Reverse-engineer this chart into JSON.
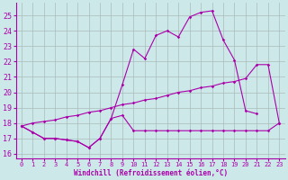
{
  "xlabel": "Windchill (Refroidissement éolien,°C)",
  "background_color": "#cce8e8",
  "grid_color": "#aabbbb",
  "line_color": "#aa00aa",
  "xlim": [
    -0.5,
    23.5
  ],
  "ylim": [
    15.7,
    25.8
  ],
  "yticks": [
    16,
    17,
    18,
    19,
    20,
    21,
    22,
    23,
    24,
    25
  ],
  "xticks": [
    0,
    1,
    2,
    3,
    4,
    5,
    6,
    7,
    8,
    9,
    10,
    11,
    12,
    13,
    14,
    15,
    16,
    17,
    18,
    19,
    20,
    21,
    22,
    23
  ],
  "line1_x": [
    0,
    1,
    2,
    3,
    4,
    5,
    6,
    7,
    8,
    9,
    10,
    11,
    12,
    13,
    14,
    15,
    16,
    17,
    18,
    19,
    20,
    21,
    22,
    23
  ],
  "line1_y": [
    17.8,
    17.4,
    17.0,
    17.0,
    16.9,
    16.8,
    16.4,
    17.0,
    18.3,
    18.5,
    17.5,
    17.5,
    17.5,
    17.5,
    17.5,
    17.5,
    17.5,
    17.5,
    17.5,
    17.5,
    17.5,
    17.5,
    17.5,
    18.0
  ],
  "line2_x": [
    0,
    1,
    2,
    3,
    4,
    5,
    6,
    7,
    8,
    9,
    10,
    11,
    12,
    13,
    14,
    15,
    16,
    17,
    18,
    19,
    20,
    21
  ],
  "line2_y": [
    17.8,
    17.4,
    17.0,
    17.0,
    16.9,
    16.8,
    16.4,
    17.0,
    18.3,
    20.5,
    22.8,
    22.2,
    23.7,
    24.0,
    23.6,
    24.9,
    25.2,
    25.3,
    23.4,
    22.1,
    18.8,
    18.6
  ],
  "line3_x": [
    0,
    1,
    2,
    3,
    4,
    5,
    6,
    7,
    8,
    9,
    10,
    11,
    12,
    13,
    14,
    15,
    16,
    17,
    18,
    19,
    20,
    21,
    22,
    23
  ],
  "line3_y": [
    17.8,
    18.0,
    18.1,
    18.2,
    18.4,
    18.5,
    18.7,
    18.8,
    19.0,
    19.2,
    19.3,
    19.5,
    19.6,
    19.8,
    20.0,
    20.1,
    20.3,
    20.4,
    20.6,
    20.7,
    20.9,
    21.8,
    21.8,
    18.0
  ]
}
